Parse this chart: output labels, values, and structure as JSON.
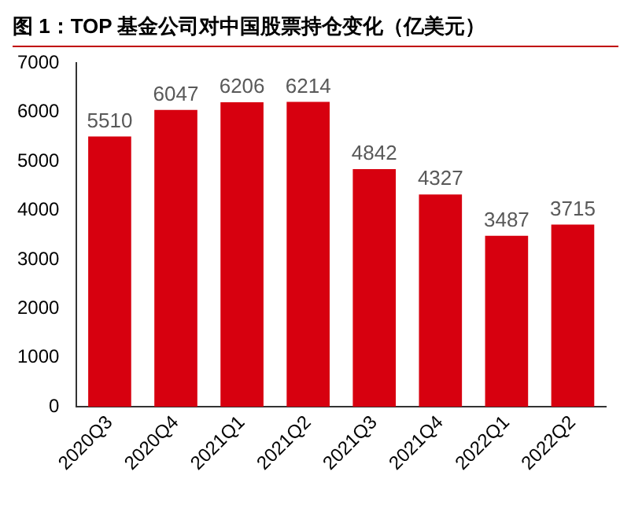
{
  "chart_data": {
    "type": "bar",
    "title": "图 1：TOP 基金公司对中国股票持仓变化（亿美元）",
    "categories": [
      "2020Q3",
      "2020Q4",
      "2021Q1",
      "2021Q2",
      "2021Q3",
      "2021Q4",
      "2022Q1",
      "2022Q2"
    ],
    "values": [
      5510,
      6047,
      6206,
      6214,
      4842,
      4327,
      3487,
      3715
    ],
    "color": "#d7000f",
    "ylim": [
      0,
      7000
    ],
    "yticks": [
      0,
      1000,
      2000,
      3000,
      4000,
      5000,
      6000,
      7000
    ],
    "grid": false,
    "legend": false,
    "data_labels": true
  }
}
